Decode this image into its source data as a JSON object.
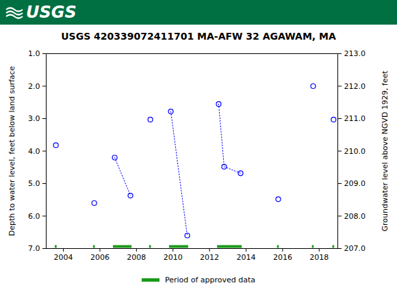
{
  "header": {
    "logo": "USGS"
  },
  "chart_data": {
    "type": "scatter",
    "title": "USGS 420339072411701 MA-AFW 32 AGAWAM, MA",
    "ylabel": "Depth to water level, feet below land surface",
    "y2label": "Groundwater level above NGVD 1929, feet",
    "xlim": [
      2003.06,
      2019.02
    ],
    "xticks": [
      2004,
      2006,
      2008,
      2010,
      2012,
      2014,
      2016,
      2018
    ],
    "ylim": [
      7.0,
      1.0
    ],
    "yticks": [
      {
        "value": 1,
        "label": "1.0"
      },
      {
        "value": 2,
        "label": "2.0"
      },
      {
        "value": 3,
        "label": "3.0"
      },
      {
        "value": 4,
        "label": "4.0"
      },
      {
        "value": 5,
        "label": "5.0"
      },
      {
        "value": 6,
        "label": "6.0"
      },
      {
        "value": 7,
        "label": "7.0"
      }
    ],
    "y2lim": [
      207.0,
      213.0
    ],
    "y2ticks": [
      {
        "value": 207,
        "label": "207.0"
      },
      {
        "value": 208,
        "label": "208.0"
      },
      {
        "value": 209,
        "label": "209.0"
      },
      {
        "value": 210,
        "label": "210.0"
      },
      {
        "value": 211,
        "label": "211.0"
      },
      {
        "value": 212,
        "label": "212.0"
      },
      {
        "value": 213,
        "label": "213.0"
      }
    ],
    "legend": "bottom",
    "series": [
      {
        "type": "line",
        "color": "#0000ff",
        "marker": "circle",
        "line_style": "dotted",
        "x": [
          2003.59
        ],
        "values": [
          3.82
        ]
      },
      {
        "type": "line",
        "color": "#0000ff",
        "marker": "circle",
        "line_style": "dotted",
        "x": [
          2005.69
        ],
        "values": [
          5.6
        ]
      },
      {
        "type": "line",
        "color": "#0000ff",
        "marker": "circle",
        "line_style": "dotted",
        "x": [
          2006.81,
          2007.67
        ],
        "values": [
          4.2,
          5.37
        ]
      },
      {
        "type": "line",
        "color": "#0000ff",
        "marker": "circle",
        "line_style": "dotted",
        "x": [
          2008.76
        ],
        "values": [
          3.03
        ]
      },
      {
        "type": "line",
        "color": "#0000ff",
        "marker": "circle",
        "line_style": "dotted",
        "x": [
          2009.88,
          2010.78
        ],
        "values": [
          2.78,
          6.6
        ]
      },
      {
        "type": "line",
        "color": "#0000ff",
        "marker": "circle",
        "line_style": "dotted",
        "x": [
          2012.5,
          2012.8,
          2013.7
        ],
        "values": [
          2.55,
          4.48,
          4.68
        ]
      },
      {
        "type": "line",
        "color": "#0000ff",
        "marker": "circle",
        "line_style": "dotted",
        "x": [
          2015.76
        ],
        "values": [
          5.48
        ]
      },
      {
        "type": "line",
        "color": "#0000ff",
        "marker": "circle",
        "line_style": "dotted",
        "x": [
          2017.67
        ],
        "values": [
          2.0
        ]
      },
      {
        "type": "line",
        "color": "#0000ff",
        "marker": "circle",
        "line_style": "dotted",
        "x": [
          2018.79
        ],
        "values": [
          3.03
        ]
      },
      {
        "name": "Period of approved data",
        "type": "period",
        "color": "#1a9a1a",
        "periods": [
          [
            2003.55,
            2003.65
          ],
          [
            2005.64,
            2005.74
          ],
          [
            2006.73,
            2007.75
          ],
          [
            2008.71,
            2008.81
          ],
          [
            2009.8,
            2010.85
          ],
          [
            2012.43,
            2013.78
          ],
          [
            2015.71,
            2015.81
          ],
          [
            2017.62,
            2017.72
          ],
          [
            2018.74,
            2018.84
          ]
        ]
      }
    ]
  }
}
